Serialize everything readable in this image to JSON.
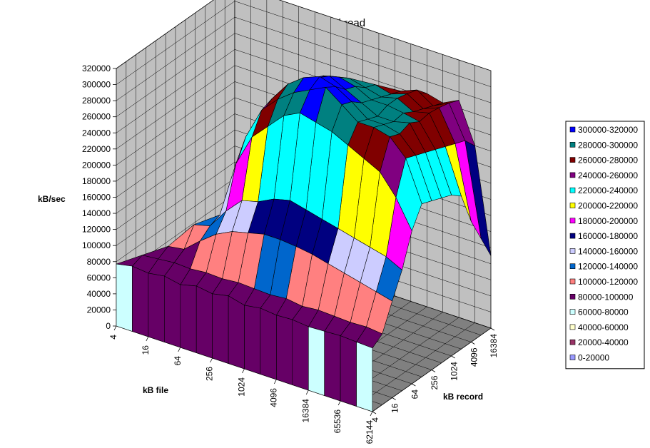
{
  "chart_data": {
    "type": "3d-surface",
    "title": "HFS normal read",
    "zlabel": "kB/sec",
    "xlabel": "kB file",
    "ylabel": "kB record",
    "zlim": [
      0,
      320000
    ],
    "z_ticks": [
      "0",
      "20000",
      "40000",
      "60000",
      "80000",
      "100000",
      "120000",
      "140000",
      "160000",
      "180000",
      "200000",
      "220000",
      "240000",
      "260000",
      "280000",
      "300000",
      "320000"
    ],
    "file_ticks": [
      "4",
      "16",
      "64",
      "256",
      "1024",
      "4096",
      "16384",
      "65536",
      "262144"
    ],
    "record_ticks": [
      "4",
      "16",
      "64",
      "256",
      "1024",
      "4096",
      "16384"
    ],
    "grid": true,
    "legend_position": "right",
    "bands": [
      {
        "label": "300000-320000",
        "color": "#0000FF"
      },
      {
        "label": "280000-300000",
        "color": "#008080"
      },
      {
        "label": "260000-280000",
        "color": "#800000"
      },
      {
        "label": "240000-260000",
        "color": "#800080"
      },
      {
        "label": "220000-240000",
        "color": "#00FFFF"
      },
      {
        "label": "200000-220000",
        "color": "#FFFF00"
      },
      {
        "label": "180000-200000",
        "color": "#FF00FF"
      },
      {
        "label": "160000-180000",
        "color": "#000080"
      },
      {
        "label": "140000-160000",
        "color": "#CCCCFF"
      },
      {
        "label": "120000-140000",
        "color": "#0066CC"
      },
      {
        "label": "100000-120000",
        "color": "#FF8080"
      },
      {
        "label": "80000-100000",
        "color": "#660066"
      },
      {
        "label": "60000-80000",
        "color": "#CCFFFF"
      },
      {
        "label": "40000-60000",
        "color": "#FFFFCC"
      },
      {
        "label": "20000-40000",
        "color": "#993366"
      },
      {
        "label": "0-20000",
        "color": "#9999FF"
      }
    ],
    "file_sizes_kb": [
      4,
      8,
      16,
      32,
      64,
      128,
      256,
      512,
      1024,
      2048,
      4096,
      8192,
      16384,
      32768,
      65536,
      131072,
      262144
    ],
    "record_sizes_kb": [
      4,
      8,
      16,
      32,
      64,
      128,
      256,
      512,
      1024,
      2048,
      4096,
      8192,
      16384
    ],
    "values_kb_per_sec": [
      [
        77000,
        81000,
        79000,
        82000,
        78000,
        83000,
        80000,
        84000,
        79000,
        82000,
        80000,
        81000,
        79000,
        80000,
        81000,
        80000,
        79000
      ],
      [
        null,
        86000,
        88000,
        90000,
        89000,
        91000,
        90000,
        92000,
        91000,
        90000,
        92000,
        89000,
        91000,
        90000,
        89000,
        90000,
        88000
      ],
      [
        null,
        null,
        95000,
        98000,
        115000,
        130000,
        140000,
        145000,
        150000,
        150000,
        148000,
        145000,
        140000,
        135000,
        130000,
        125000,
        120000
      ],
      [
        null,
        null,
        null,
        120000,
        125000,
        150000,
        170000,
        175000,
        185000,
        190000,
        185000,
        180000,
        175000,
        170000,
        165000,
        160000,
        150000
      ],
      [
        null,
        null,
        null,
        null,
        130000,
        200000,
        240000,
        260000,
        280000,
        290000,
        285000,
        280000,
        270000,
        260000,
        250000,
        225000,
        190000
      ],
      [
        null,
        null,
        null,
        null,
        null,
        225000,
        265000,
        285000,
        300000,
        310000,
        320000,
        305000,
        290000,
        290000,
        285000,
        265000,
        215000
      ],
      [
        null,
        null,
        null,
        null,
        null,
        null,
        270000,
        295000,
        310000,
        318000,
        312000,
        300000,
        285000,
        285000,
        280000,
        260000,
        210000
      ],
      [
        null,
        null,
        null,
        null,
        null,
        null,
        null,
        290000,
        300000,
        310000,
        300000,
        290000,
        280000,
        280000,
        285000,
        255000,
        205000
      ],
      [
        null,
        null,
        null,
        null,
        null,
        null,
        null,
        null,
        295000,
        300000,
        295000,
        285000,
        285000,
        282000,
        278000,
        250000,
        200000
      ],
      [
        null,
        null,
        null,
        null,
        null,
        null,
        null,
        null,
        null,
        290000,
        285000,
        280000,
        285000,
        275000,
        280000,
        245000,
        190000
      ],
      [
        null,
        null,
        null,
        null,
        null,
        null,
        null,
        null,
        null,
        null,
        280000,
        275000,
        282000,
        270000,
        278000,
        240000,
        150000
      ],
      [
        null,
        null,
        null,
        null,
        null,
        null,
        null,
        null,
        null,
        null,
        null,
        270000,
        278000,
        265000,
        275000,
        235000,
        120000
      ],
      [
        null,
        null,
        null,
        null,
        null,
        null,
        null,
        null,
        null,
        null,
        null,
        null,
        265000,
        260000,
        270000,
        220000,
        90000
      ]
    ]
  }
}
